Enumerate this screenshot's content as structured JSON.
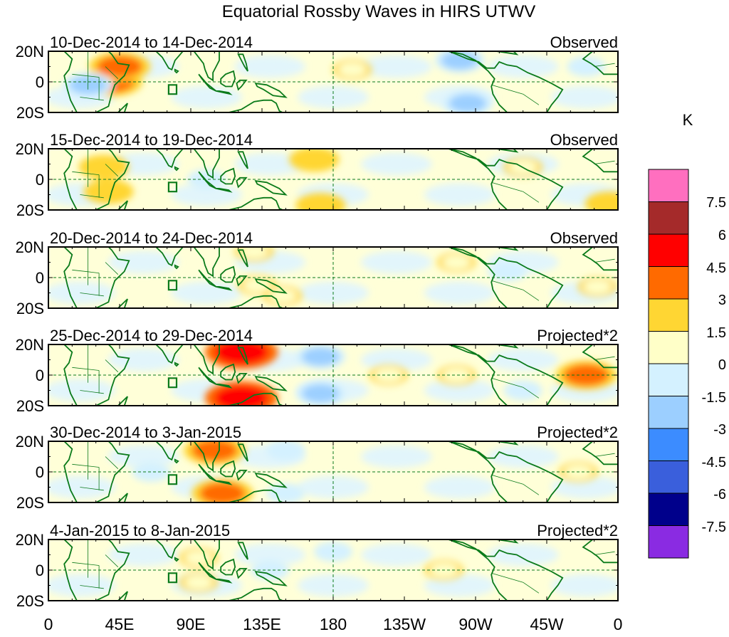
{
  "title": "Equatorial Rossby Waves in HIRS UTWV",
  "panels": [
    {
      "period": "10-Dec-2014 to 14-Dec-2014",
      "label": "Observed",
      "anomalies": [
        {
          "lon": 40,
          "lat": 0,
          "value": 4.5
        },
        {
          "lon": 45,
          "lat": 10,
          "value": 4.5
        },
        {
          "lon": 25,
          "lat": -2,
          "value": -3
        },
        {
          "lon": 192,
          "lat": 8,
          "value": 1.5
        },
        {
          "lon": 260,
          "lat": 14,
          "value": -3
        },
        {
          "lon": 265,
          "lat": -14,
          "value": -3
        },
        {
          "lon": 340,
          "lat": 10,
          "value": -1.5
        }
      ]
    },
    {
      "period": "15-Dec-2014 to 19-Dec-2014",
      "label": "Observed",
      "anomalies": [
        {
          "lon": 35,
          "lat": 8,
          "value": 3
        },
        {
          "lon": 38,
          "lat": -8,
          "value": 3
        },
        {
          "lon": 168,
          "lat": 13,
          "value": 3
        },
        {
          "lon": 172,
          "lat": -17,
          "value": 3
        },
        {
          "lon": 100,
          "lat": 0,
          "value": -1.5
        },
        {
          "lon": 300,
          "lat": 8,
          "value": 1.5
        },
        {
          "lon": 355,
          "lat": -16,
          "value": 3
        }
      ]
    },
    {
      "period": "20-Dec-2014 to 24-Dec-2014",
      "label": "Observed",
      "anomalies": [
        {
          "lon": 132,
          "lat": -5,
          "value": 1.5
        },
        {
          "lon": 130,
          "lat": 17,
          "value": 1.5
        },
        {
          "lon": 148,
          "lat": -12,
          "value": 1.5
        },
        {
          "lon": 258,
          "lat": 10,
          "value": 1.5
        },
        {
          "lon": 290,
          "lat": 4,
          "value": -1.5
        },
        {
          "lon": 347,
          "lat": -6,
          "value": 1.5
        }
      ]
    },
    {
      "period": "25-Dec-2014 to 29-Dec-2014",
      "label": "Projected*2",
      "anomalies": [
        {
          "lon": 122,
          "lat": 15,
          "value": 6
        },
        {
          "lon": 122,
          "lat": -15,
          "value": 6
        },
        {
          "lon": 172,
          "lat": 12,
          "value": -3
        },
        {
          "lon": 172,
          "lat": -12,
          "value": -3
        },
        {
          "lon": 215,
          "lat": 0,
          "value": 1.5
        },
        {
          "lon": 258,
          "lat": 0,
          "value": 1.5
        },
        {
          "lon": 340,
          "lat": 0,
          "value": 4.5
        },
        {
          "lon": 300,
          "lat": -10,
          "value": -1.5
        }
      ]
    },
    {
      "period": "30-Dec-2014 to 3-Jan-2015",
      "label": "Projected*2",
      "anomalies": [
        {
          "lon": 105,
          "lat": 14,
          "value": 4.5
        },
        {
          "lon": 110,
          "lat": -14,
          "value": 4.5
        },
        {
          "lon": 65,
          "lat": 0,
          "value": -1.5
        },
        {
          "lon": 150,
          "lat": 14,
          "value": -1.5
        },
        {
          "lon": 150,
          "lat": -14,
          "value": -1.5
        },
        {
          "lon": 335,
          "lat": 0,
          "value": 1.5
        }
      ]
    },
    {
      "period": "4-Jan-2015 to 8-Jan-2015",
      "label": "Projected*2",
      "anomalies": [
        {
          "lon": 95,
          "lat": 8,
          "value": 1.5
        },
        {
          "lon": 95,
          "lat": -8,
          "value": 1.5
        },
        {
          "lon": 140,
          "lat": 0,
          "value": -1.5
        },
        {
          "lon": 250,
          "lat": 0,
          "value": 1.5
        },
        {
          "lon": 180,
          "lat": 12,
          "value": -1.5
        }
      ]
    }
  ],
  "y_ticks": [
    "20N",
    "0",
    "20S"
  ],
  "x_ticks": [
    "0",
    "45E",
    "90E",
    "135E",
    "180",
    "135W",
    "90W",
    "45W",
    "0"
  ],
  "colorbar": {
    "unit": "K",
    "labels": [
      "7.5",
      "6",
      "4.5",
      "3",
      "1.5",
      "0",
      "-1.5",
      "-3",
      "-4.5",
      "-6",
      "-7.5"
    ],
    "colors": [
      "#ff6fbf",
      "#a52a2a",
      "#ff0000",
      "#ff6a00",
      "#ffd633",
      "#ffffc8",
      "#d4f1ff",
      "#9ccfff",
      "#3c8cff",
      "#3a5fdc",
      "#00008b",
      "#8a2be2"
    ]
  },
  "colors": {
    "coast": "#0a7a1a",
    "land": "#0a7a1a",
    "dashed": "#0a7a1a",
    "base_warm": "#ffffd8",
    "base_cool": "#dff4ff"
  }
}
